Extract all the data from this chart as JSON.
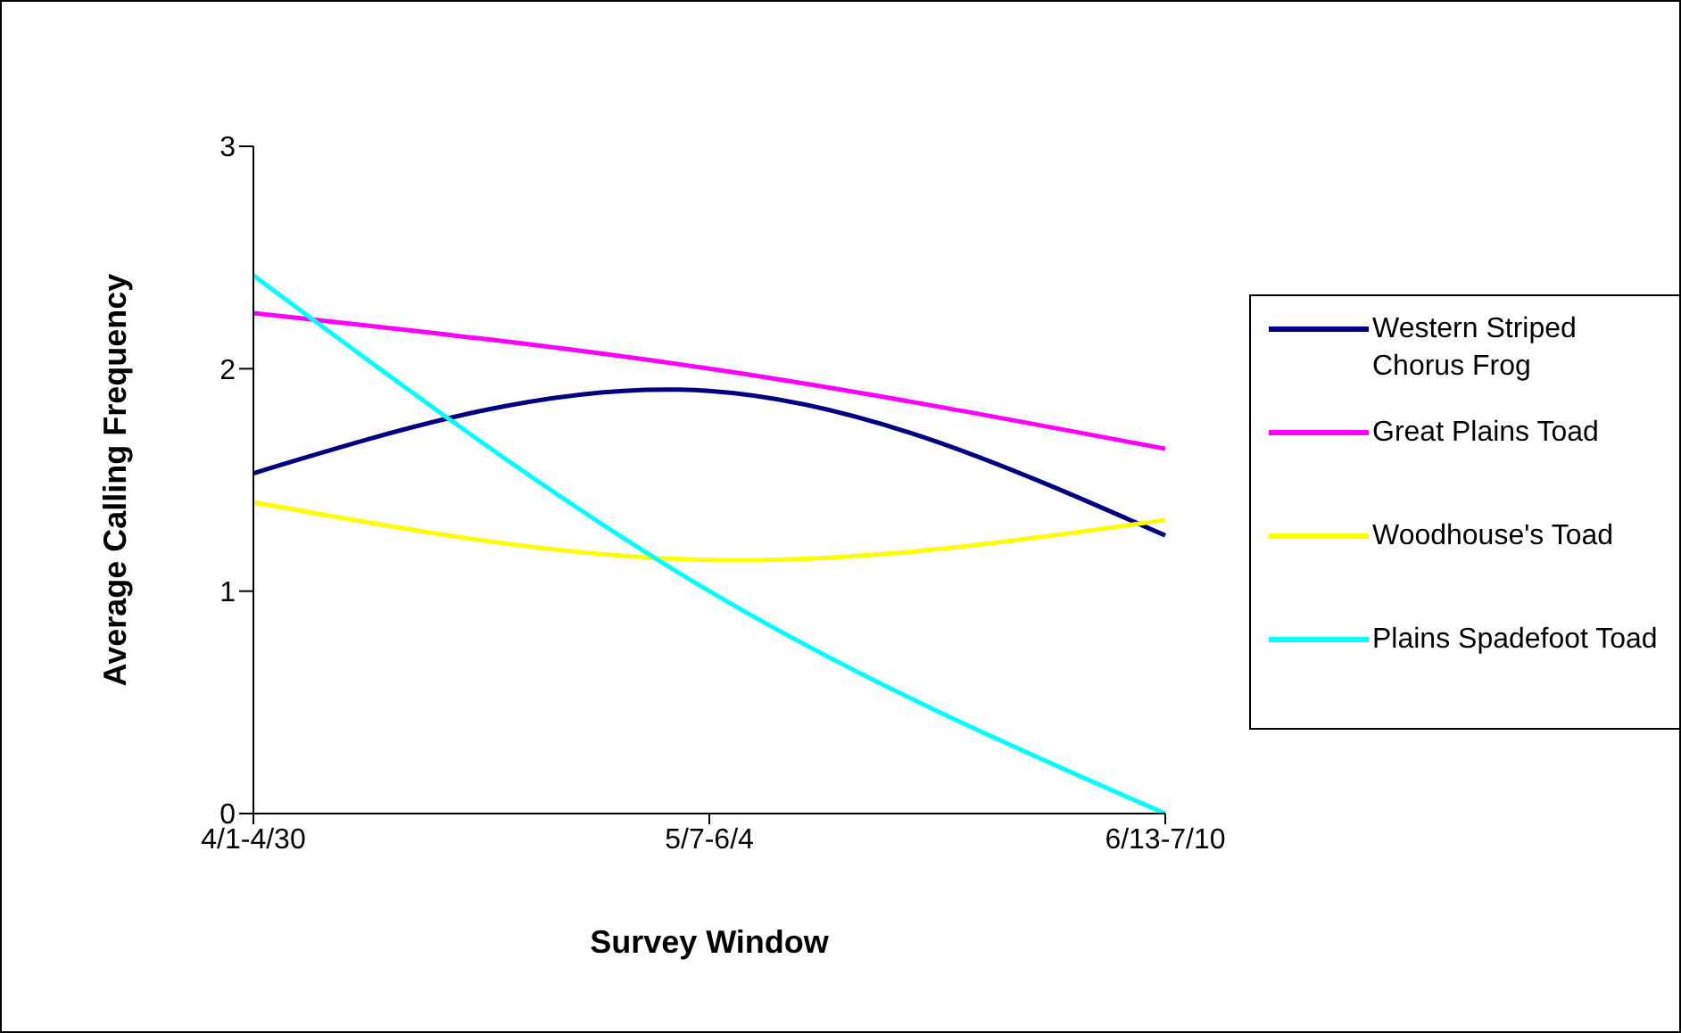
{
  "chart_data": {
    "type": "line",
    "xlabel": "Survey Window",
    "ylabel": "Average Calling Frequency",
    "categories": [
      "4/1-4/30",
      "5/7-6/4",
      "6/13-7/10"
    ],
    "series": [
      {
        "name": "Western Striped Chorus Frog",
        "color": "#000080",
        "values": [
          1.53,
          1.9,
          1.25
        ]
      },
      {
        "name": "Great Plains Toad",
        "color": "#ff00ff",
        "values": [
          2.25,
          2.0,
          1.64
        ]
      },
      {
        "name": "Woodhouse's Toad",
        "color": "#ffff00",
        "values": [
          1.4,
          1.14,
          1.32
        ]
      },
      {
        "name": "Plains Spadefoot Toad",
        "color": "#00ffff",
        "values": [
          2.42,
          1.0,
          0.0
        ]
      }
    ],
    "ylim": [
      0,
      3
    ],
    "yticks": [
      0,
      1,
      2,
      3
    ],
    "grid": false,
    "legend": "right",
    "marker": "none",
    "line_style": "solid"
  }
}
